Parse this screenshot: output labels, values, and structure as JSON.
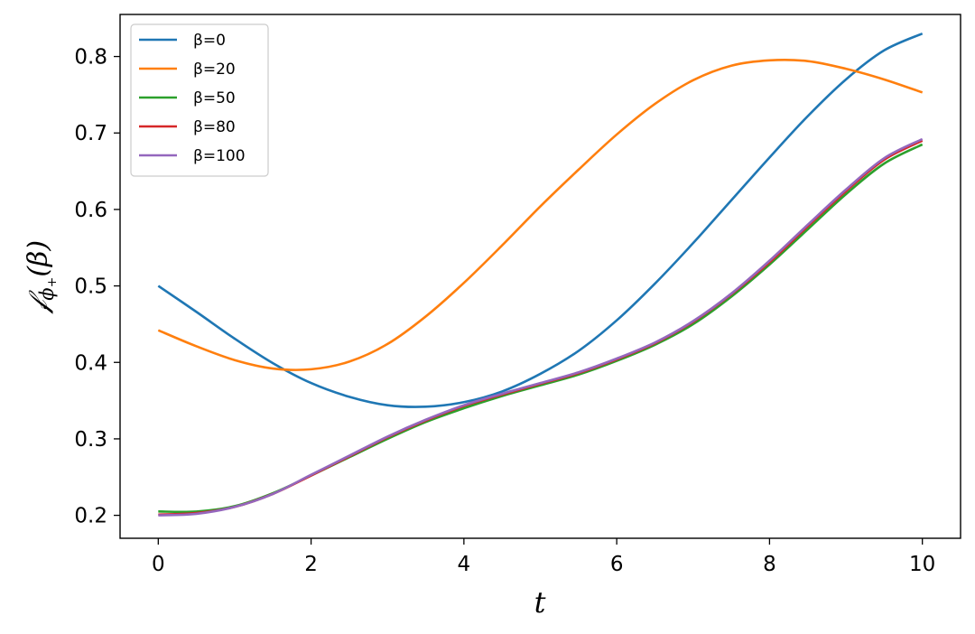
{
  "chart_data": {
    "type": "line",
    "title": "",
    "xlabel": "t",
    "ylabel": {
      "script_f": "𝒻",
      "phi": "ϕ",
      "plus": "+",
      "beta": "(β)"
    },
    "xlim": [
      -0.5,
      10.5
    ],
    "ylim": [
      0.17,
      0.855
    ],
    "xticks": [
      0,
      2,
      4,
      6,
      8,
      10
    ],
    "yticks": [
      0.2,
      0.3,
      0.4,
      0.5,
      0.6,
      0.7,
      0.8
    ],
    "grid": false,
    "legend_position": "top-left",
    "x": [
      0,
      0.5,
      1,
      1.5,
      2,
      2.5,
      3,
      3.5,
      4,
      4.5,
      5,
      5.5,
      6,
      6.5,
      7,
      7.5,
      8,
      8.5,
      9,
      9.5,
      10
    ],
    "series": [
      {
        "name": "β=0",
        "color": "#1f77b4",
        "values": [
          0.5,
          0.466,
          0.431,
          0.399,
          0.373,
          0.355,
          0.344,
          0.342,
          0.348,
          0.362,
          0.385,
          0.415,
          0.455,
          0.503,
          0.556,
          0.612,
          0.668,
          0.722,
          0.77,
          0.808,
          0.83
        ]
      },
      {
        "name": "β=20",
        "color": "#ff7f0e",
        "values": [
          0.442,
          0.421,
          0.403,
          0.392,
          0.391,
          0.401,
          0.424,
          0.46,
          0.504,
          0.553,
          0.604,
          0.652,
          0.698,
          0.738,
          0.769,
          0.788,
          0.795,
          0.794,
          0.784,
          0.77,
          0.753
        ]
      },
      {
        "name": "β=50",
        "color": "#2ca02c",
        "values": [
          0.205,
          0.205,
          0.212,
          0.229,
          0.252,
          0.276,
          0.3,
          0.322,
          0.34,
          0.356,
          0.37,
          0.384,
          0.402,
          0.423,
          0.45,
          0.486,
          0.528,
          0.574,
          0.62,
          0.66,
          0.685
        ]
      },
      {
        "name": "β=80",
        "color": "#d62728",
        "values": [
          0.201,
          0.203,
          0.211,
          0.228,
          0.252,
          0.277,
          0.302,
          0.324,
          0.343,
          0.358,
          0.372,
          0.386,
          0.404,
          0.425,
          0.453,
          0.489,
          0.531,
          0.578,
          0.624,
          0.665,
          0.69
        ]
      },
      {
        "name": "β=100",
        "color": "#9467bd",
        "values": [
          0.2,
          0.202,
          0.211,
          0.228,
          0.253,
          0.278,
          0.303,
          0.325,
          0.344,
          0.359,
          0.373,
          0.387,
          0.405,
          0.426,
          0.454,
          0.49,
          0.533,
          0.58,
          0.626,
          0.667,
          0.692
        ]
      }
    ]
  }
}
